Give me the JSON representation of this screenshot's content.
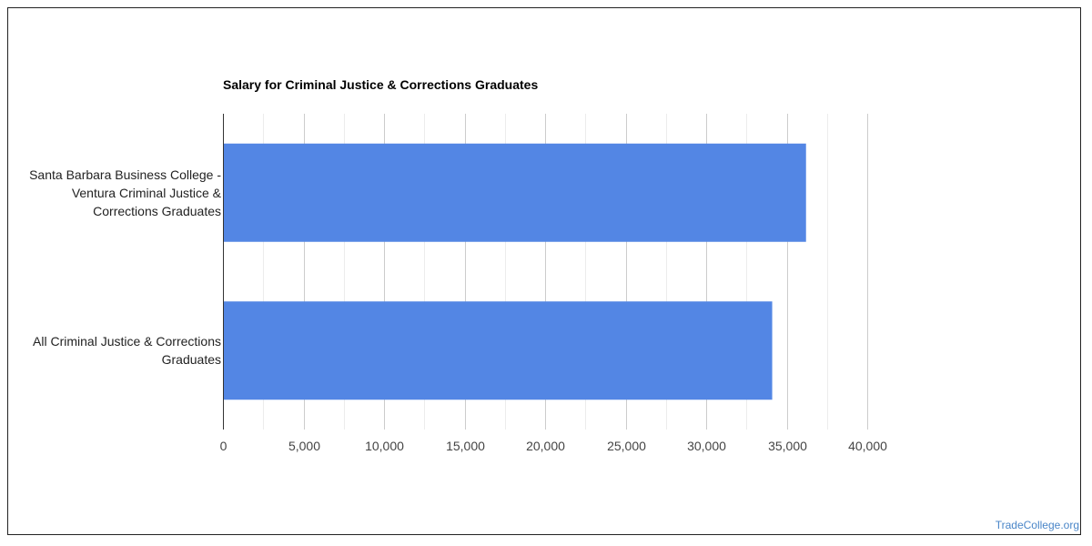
{
  "chart_data": {
    "type": "bar",
    "orientation": "horizontal",
    "title": "Salary for Criminal Justice & Corrections Graduates",
    "categories": [
      "Santa Barbara Business College - Ventura Criminal Justice & Corrections Graduates",
      "All Criminal Justice & Corrections Graduates"
    ],
    "category_label_lines": [
      [
        "Santa Barbara Business College -",
        "Ventura Criminal Justice &",
        "Corrections Graduates"
      ],
      [
        "All Criminal Justice & Corrections",
        "Graduates"
      ]
    ],
    "values": [
      36200,
      34100
    ],
    "xlim": [
      0,
      40000
    ],
    "xticks": [
      0,
      5000,
      10000,
      15000,
      20000,
      25000,
      30000,
      35000,
      40000
    ],
    "xtick_labels": [
      "0",
      "5,000",
      "10,000",
      "15,000",
      "20,000",
      "25,000",
      "30,000",
      "35,000",
      "40,000"
    ],
    "grid": true,
    "legend": "none",
    "bar_color": "#5386e4"
  },
  "watermark": "TradeCollege.org"
}
